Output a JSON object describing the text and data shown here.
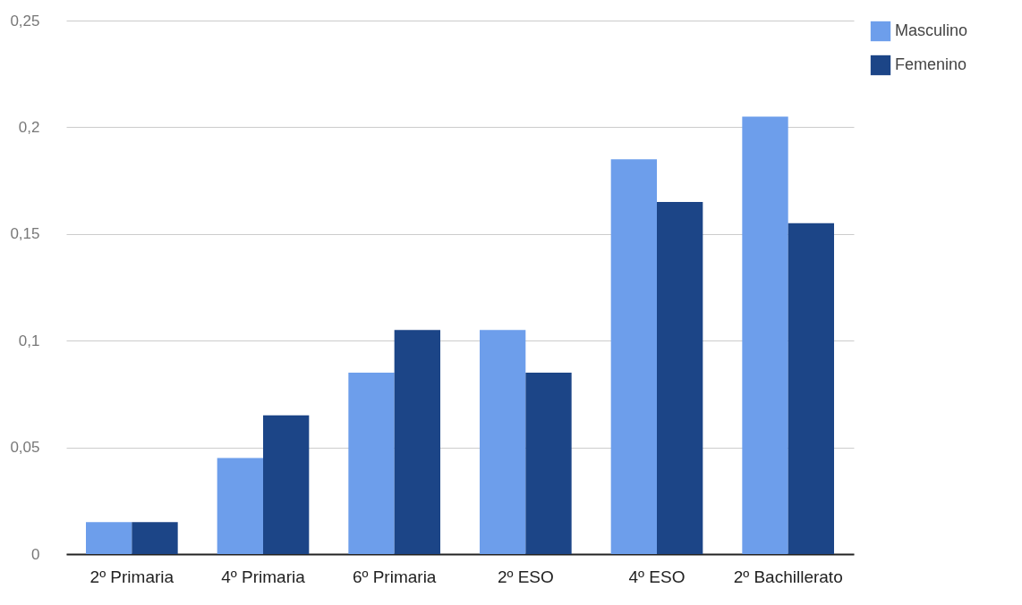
{
  "chart_data": {
    "type": "bar",
    "categories": [
      "2º Primaria",
      "4º Primaria",
      "6º Primaria",
      "2º ESO",
      "4º ESO",
      "2º Bachillerato"
    ],
    "series": [
      {
        "name": "Masculino",
        "color": "#6d9eeb",
        "values": [
          0.015,
          0.045,
          0.085,
          0.105,
          0.185,
          0.205
        ]
      },
      {
        "name": "Femenino",
        "color": "#1c4587",
        "values": [
          0.015,
          0.065,
          0.105,
          0.085,
          0.165,
          0.155
        ]
      }
    ],
    "ylim": [
      0,
      0.25
    ],
    "yticks": [
      {
        "value": 0,
        "label": "0"
      },
      {
        "value": 0.05,
        "label": "0,05"
      },
      {
        "value": 0.1,
        "label": "0,1"
      },
      {
        "value": 0.15,
        "label": "0,15"
      },
      {
        "value": 0.2,
        "label": "0,2"
      },
      {
        "value": 0.25,
        "label": "0,25"
      }
    ],
    "grid": "y",
    "legend": "top right"
  }
}
